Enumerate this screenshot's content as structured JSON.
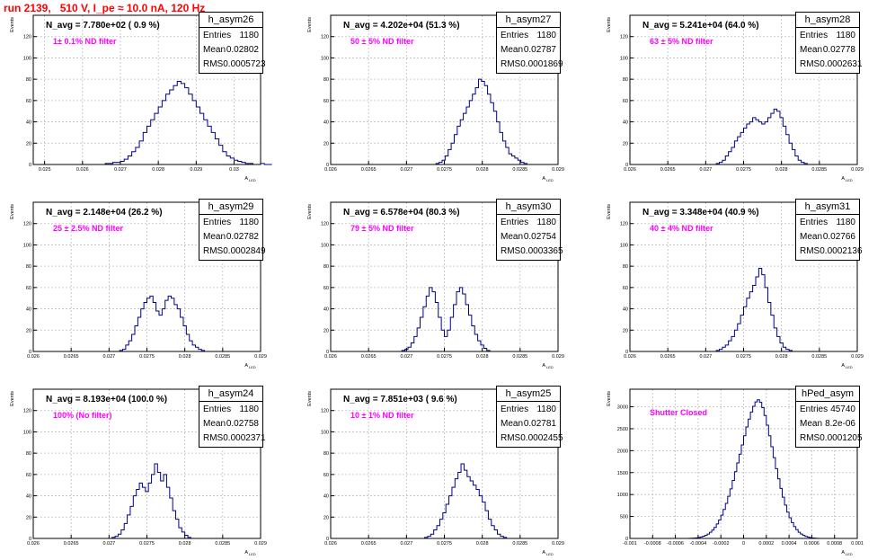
{
  "page": {
    "title": "run 2139,   510 V, I_pe ≈ 10.0 nA, 120 Hz",
    "y_axis_label": "Events",
    "x_axis_label": "A",
    "x_axis_sub": "LED"
  },
  "colors": {
    "title": "#ff0000",
    "histogram": "#00008b",
    "annotation": "#ff00ff",
    "grid": "#bfbfbf"
  },
  "chart_data": [
    {
      "type": "bar",
      "name": "h_asym26",
      "nlabel": "N_avg = 7.780e+02 ( 0.9 %)",
      "note": "1± 0.1% ND filter",
      "stats": {
        "entries": "1180",
        "mean": "0.02802",
        "rms": "0.0005723"
      },
      "stats_labels": {
        "entries": "Entries",
        "mean": "Mean",
        "rms": "RMS"
      },
      "xlim": [
        0.0247,
        0.0307
      ],
      "ylim": [
        0,
        140
      ],
      "xticks": [
        {
          "v": 0.025,
          "label": "0.025"
        },
        {
          "v": 0.026,
          "label": "0.026"
        },
        {
          "v": 0.027,
          "label": "0.027"
        },
        {
          "v": 0.028,
          "label": "0.028"
        },
        {
          "v": 0.029,
          "label": "0.029"
        },
        {
          "v": 0.03,
          "label": "0.03"
        }
      ],
      "yticks": [
        0,
        20,
        40,
        60,
        80,
        100,
        120
      ],
      "bin_start": 0.0265,
      "bin_width": 0.0001,
      "counts": [
        0,
        1,
        1,
        2,
        2,
        3,
        5,
        8,
        12,
        16,
        22,
        30,
        36,
        42,
        48,
        54,
        60,
        66,
        70,
        74,
        78,
        76,
        72,
        66,
        60,
        54,
        48,
        42,
        36,
        30,
        24,
        18,
        12,
        8,
        6,
        4,
        3,
        2,
        1,
        1,
        0,
        0,
        1,
        0,
        0
      ]
    },
    {
      "type": "bar",
      "name": "h_asym27",
      "nlabel": "N_avg = 4.202e+04 (51.3 %)",
      "note": "50 ± 5% ND filter",
      "stats": {
        "entries": "1180",
        "mean": "0.02787",
        "rms": "0.0001869"
      },
      "stats_labels": {
        "entries": "Entries",
        "mean": "Mean",
        "rms": "RMS"
      },
      "xlim": [
        0.026,
        0.029
      ],
      "ylim": [
        0,
        140
      ],
      "xticks": [
        {
          "v": 0.026,
          "label": "0.026"
        },
        {
          "v": 0.0265,
          "label": "0.0265"
        },
        {
          "v": 0.027,
          "label": "0.027"
        },
        {
          "v": 0.0275,
          "label": "0.0275"
        },
        {
          "v": 0.028,
          "label": "0.028"
        },
        {
          "v": 0.0285,
          "label": "0.0285"
        },
        {
          "v": 0.029,
          "label": "0.029"
        }
      ],
      "yticks": [
        0,
        20,
        40,
        60,
        80,
        100,
        120
      ],
      "bin_start": 0.02735,
      "bin_width": 4e-05,
      "counts": [
        0,
        1,
        2,
        4,
        8,
        14,
        20,
        28,
        36,
        42,
        48,
        54,
        60,
        66,
        72,
        80,
        78,
        74,
        66,
        58,
        50,
        40,
        30,
        22,
        16,
        10,
        8,
        6,
        4,
        2,
        1,
        0
      ]
    },
    {
      "type": "bar",
      "name": "h_asym28",
      "nlabel": "N_avg = 5.241e+04 (64.0 %)",
      "note": "63 ± 5% ND filter",
      "stats": {
        "entries": "1180",
        "mean": "0.02778",
        "rms": "0.0002631"
      },
      "stats_labels": {
        "entries": "Entries",
        "mean": "Mean",
        "rms": "RMS"
      },
      "xlim": [
        0.026,
        0.029
      ],
      "ylim": [
        0,
        140
      ],
      "xticks": [
        {
          "v": 0.026,
          "label": "0.026"
        },
        {
          "v": 0.0265,
          "label": "0.0265"
        },
        {
          "v": 0.027,
          "label": "0.027"
        },
        {
          "v": 0.0275,
          "label": "0.0275"
        },
        {
          "v": 0.028,
          "label": "0.028"
        },
        {
          "v": 0.0285,
          "label": "0.0285"
        },
        {
          "v": 0.029,
          "label": "0.029"
        }
      ],
      "yticks": [
        0,
        20,
        40,
        60,
        80,
        100,
        120
      ],
      "bin_start": 0.0271,
      "bin_width": 4e-05,
      "counts": [
        0,
        1,
        2,
        4,
        8,
        12,
        16,
        22,
        26,
        30,
        34,
        38,
        40,
        44,
        42,
        40,
        38,
        40,
        44,
        48,
        52,
        50,
        44,
        36,
        28,
        20,
        14,
        8,
        4,
        2,
        1,
        0,
        0,
        0,
        0
      ]
    },
    {
      "type": "bar",
      "name": "h_asym29",
      "nlabel": "N_avg = 2.148e+04 (26.2 %)",
      "note": "25 ± 2.5% ND filter",
      "stats": {
        "entries": "1180",
        "mean": "0.02782",
        "rms": "0.0002849"
      },
      "stats_labels": {
        "entries": "Entries",
        "mean": "Mean",
        "rms": "RMS"
      },
      "xlim": [
        0.026,
        0.029
      ],
      "ylim": [
        0,
        140
      ],
      "xticks": [
        {
          "v": 0.026,
          "label": "0.026"
        },
        {
          "v": 0.0265,
          "label": "0.0265"
        },
        {
          "v": 0.027,
          "label": "0.027"
        },
        {
          "v": 0.0275,
          "label": "0.0275"
        },
        {
          "v": 0.028,
          "label": "0.028"
        },
        {
          "v": 0.0285,
          "label": "0.0285"
        },
        {
          "v": 0.029,
          "label": "0.029"
        }
      ],
      "yticks": [
        0,
        20,
        40,
        60,
        80,
        100,
        120
      ],
      "bin_start": 0.0271,
      "bin_width": 4e-05,
      "counts": [
        0,
        1,
        2,
        6,
        10,
        16,
        24,
        32,
        40,
        46,
        50,
        52,
        46,
        38,
        34,
        40,
        48,
        52,
        50,
        44,
        40,
        32,
        24,
        16,
        10,
        6,
        4,
        2,
        1,
        0,
        0
      ]
    },
    {
      "type": "bar",
      "name": "h_asym30",
      "nlabel": "N_avg = 6.578e+04 (80.3 %)",
      "note": "79 ± 5% ND filter",
      "stats": {
        "entries": "1180",
        "mean": "0.02754",
        "rms": "0.0003365"
      },
      "stats_labels": {
        "entries": "Entries",
        "mean": "Mean",
        "rms": "RMS"
      },
      "xlim": [
        0.026,
        0.029
      ],
      "ylim": [
        0,
        140
      ],
      "xticks": [
        {
          "v": 0.026,
          "label": "0.026"
        },
        {
          "v": 0.0265,
          "label": "0.0265"
        },
        {
          "v": 0.027,
          "label": "0.027"
        },
        {
          "v": 0.0275,
          "label": "0.0275"
        },
        {
          "v": 0.028,
          "label": "0.028"
        },
        {
          "v": 0.0285,
          "label": "0.0285"
        },
        {
          "v": 0.029,
          "label": "0.029"
        }
      ],
      "yticks": [
        0,
        20,
        40,
        60,
        80,
        100,
        120
      ],
      "bin_start": 0.0269,
      "bin_width": 4e-05,
      "counts": [
        0,
        1,
        2,
        4,
        8,
        14,
        22,
        32,
        42,
        52,
        60,
        56,
        46,
        32,
        20,
        14,
        20,
        32,
        44,
        56,
        60,
        54,
        44,
        34,
        24,
        16,
        10,
        6,
        3,
        1,
        0,
        0
      ]
    },
    {
      "type": "bar",
      "name": "h_asym31",
      "nlabel": "N_avg = 3.348e+04 (40.9 %)",
      "note": "40 ± 4% ND filter",
      "stats": {
        "entries": "1180",
        "mean": "0.02766",
        "rms": "0.0002136"
      },
      "stats_labels": {
        "entries": "Entries",
        "mean": "Mean",
        "rms": "RMS"
      },
      "xlim": [
        0.026,
        0.029
      ],
      "ylim": [
        0,
        140
      ],
      "xticks": [
        {
          "v": 0.026,
          "label": "0.026"
        },
        {
          "v": 0.0265,
          "label": "0.0265"
        },
        {
          "v": 0.027,
          "label": "0.027"
        },
        {
          "v": 0.0275,
          "label": "0.0275"
        },
        {
          "v": 0.028,
          "label": "0.028"
        },
        {
          "v": 0.0285,
          "label": "0.0285"
        },
        {
          "v": 0.029,
          "label": "0.029"
        }
      ],
      "yticks": [
        0,
        20,
        40,
        60,
        80,
        100,
        120
      ],
      "bin_start": 0.0271,
      "bin_width": 4e-05,
      "counts": [
        0,
        1,
        2,
        4,
        6,
        10,
        14,
        20,
        26,
        34,
        42,
        50,
        56,
        62,
        70,
        78,
        72,
        60,
        46,
        34,
        22,
        14,
        8,
        4,
        2,
        1,
        0,
        0
      ]
    },
    {
      "type": "bar",
      "name": "h_asym24",
      "nlabel": "N_avg = 8.193e+04 (100.0 %)",
      "note": "100% (No filter)",
      "stats": {
        "entries": "1180",
        "mean": "0.02758",
        "rms": "0.0002371"
      },
      "stats_labels": {
        "entries": "Entries",
        "mean": "Mean",
        "rms": "RMS"
      },
      "xlim": [
        0.026,
        0.029
      ],
      "ylim": [
        0,
        140
      ],
      "xticks": [
        {
          "v": 0.026,
          "label": "0.026"
        },
        {
          "v": 0.0265,
          "label": "0.0265"
        },
        {
          "v": 0.027,
          "label": "0.027"
        },
        {
          "v": 0.0275,
          "label": "0.0275"
        },
        {
          "v": 0.028,
          "label": "0.028"
        },
        {
          "v": 0.0285,
          "label": "0.0285"
        },
        {
          "v": 0.029,
          "label": "0.029"
        }
      ],
      "yticks": [
        0,
        20,
        40,
        60,
        80,
        100,
        120
      ],
      "bin_start": 0.027,
      "bin_width": 4e-05,
      "counts": [
        0,
        1,
        2,
        4,
        8,
        14,
        22,
        30,
        40,
        46,
        52,
        48,
        44,
        52,
        60,
        70,
        62,
        54,
        60,
        48,
        38,
        26,
        18,
        10,
        6,
        3,
        1,
        0,
        0
      ]
    },
    {
      "type": "bar",
      "name": "h_asym25",
      "nlabel": "N_avg = 7.851e+03 ( 9.6 %)",
      "note": "10 ± 1% ND filter",
      "stats": {
        "entries": "1180",
        "mean": "0.02781",
        "rms": "0.0002455"
      },
      "stats_labels": {
        "entries": "Entries",
        "mean": "Mean",
        "rms": "RMS"
      },
      "xlim": [
        0.026,
        0.029
      ],
      "ylim": [
        0,
        140
      ],
      "xticks": [
        {
          "v": 0.026,
          "label": "0.026"
        },
        {
          "v": 0.0265,
          "label": "0.0265"
        },
        {
          "v": 0.027,
          "label": "0.027"
        },
        {
          "v": 0.0275,
          "label": "0.0275"
        },
        {
          "v": 0.028,
          "label": "0.028"
        },
        {
          "v": 0.0285,
          "label": "0.0285"
        },
        {
          "v": 0.029,
          "label": "0.029"
        }
      ],
      "yticks": [
        0,
        20,
        40,
        60,
        80,
        100,
        120
      ],
      "bin_start": 0.0272,
      "bin_width": 4e-05,
      "counts": [
        0,
        1,
        2,
        4,
        8,
        12,
        18,
        24,
        32,
        40,
        48,
        56,
        62,
        70,
        64,
        58,
        54,
        50,
        46,
        40,
        34,
        26,
        18,
        12,
        8,
        4,
        2,
        1,
        0,
        0
      ]
    },
    {
      "type": "bar",
      "name": "hPed_asym",
      "nlabel": "",
      "note": "Shutter Closed",
      "stats": {
        "entries": "45740",
        "mean": "8.2e-06",
        "rms": "0.0001205"
      },
      "stats_labels": {
        "entries": "Entries",
        "mean": "Mean",
        "rms": "RMS"
      },
      "xlim": [
        -0.001,
        0.001
      ],
      "ylim": [
        0,
        3400
      ],
      "xticks": [
        {
          "v": -0.001,
          "label": "-0.001"
        },
        {
          "v": -0.0008,
          "label": "-0.0008"
        },
        {
          "v": -0.0006,
          "label": "-0.0006"
        },
        {
          "v": -0.0004,
          "label": "-0.0004"
        },
        {
          "v": -0.0002,
          "label": "-0.0002"
        },
        {
          "v": 0,
          "label": "0"
        },
        {
          "v": 0.0002,
          "label": "0.0002"
        },
        {
          "v": 0.0004,
          "label": "0.0004"
        },
        {
          "v": 0.0006,
          "label": "0.0006"
        },
        {
          "v": 0.0008,
          "label": "0.0008"
        },
        {
          "v": 0.001,
          "label": "0.001"
        }
      ],
      "yticks": [
        0,
        500,
        1000,
        1500,
        2000,
        2500,
        3000
      ],
      "bin_start": -0.0005,
      "bin_width": 2e-05,
      "counts": [
        0,
        2,
        4,
        8,
        14,
        22,
        34,
        50,
        72,
        100,
        140,
        190,
        250,
        330,
        420,
        530,
        660,
        800,
        960,
        1130,
        1320,
        1520,
        1720,
        1920,
        2130,
        2340,
        2540,
        2720,
        2880,
        3010,
        3110,
        3160,
        3100,
        2980,
        2800,
        2580,
        2340,
        2090,
        1840,
        1590,
        1360,
        1140,
        940,
        760,
        600,
        470,
        360,
        270,
        200,
        140,
        100,
        70,
        46,
        30,
        18,
        10,
        6,
        3,
        1,
        0
      ]
    }
  ]
}
